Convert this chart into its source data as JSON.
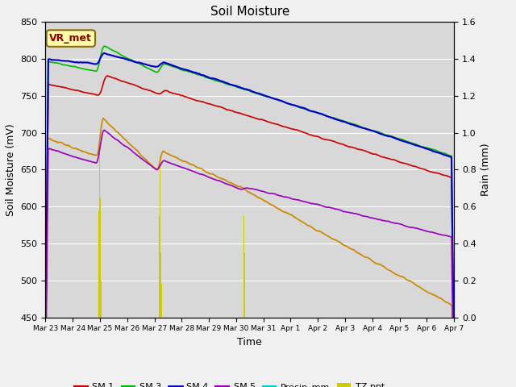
{
  "title": "Soil Moisture",
  "xlabel": "Time",
  "ylabel_left": "Soil Moisture (mV)",
  "ylabel_right": "Rain (mm)",
  "ylim_left": [
    450,
    850
  ],
  "ylim_right": [
    0.0,
    1.6
  ],
  "figure_bg": "#f0f0f0",
  "plot_bg": "#d8d8d8",
  "annotation_text": "VR_met",
  "annotation_bg": "#ffffaa",
  "annotation_border": "#8b6914",
  "annotation_text_color": "#8b0000",
  "line_colors": {
    "SM1": "#cc0000",
    "SM2": "#cc8800",
    "SM3": "#00bb00",
    "SM4": "#0000cc",
    "SM5": "#9900bb",
    "Precip_mm": "#00cccc",
    "TZ_ppt": "#cccc00"
  },
  "yticks_left": [
    450,
    500,
    550,
    600,
    650,
    700,
    750,
    800,
    850
  ],
  "yticks_right": [
    0.0,
    0.2,
    0.4,
    0.6,
    0.8,
    1.0,
    1.2,
    1.4,
    1.6
  ],
  "x_tick_labels": [
    "Mar 23",
    "Mar 24",
    "Mar 25",
    "Mar 26",
    "Mar 27",
    "Mar 28",
    "Mar 29",
    "Mar 30",
    "Mar 31",
    "Apr 1",
    "Apr 2",
    "Apr 3",
    "Apr 4",
    "Apr 5",
    "Apr 6",
    "Apr 7"
  ],
  "n_points": 1440,
  "duration_days": 15
}
